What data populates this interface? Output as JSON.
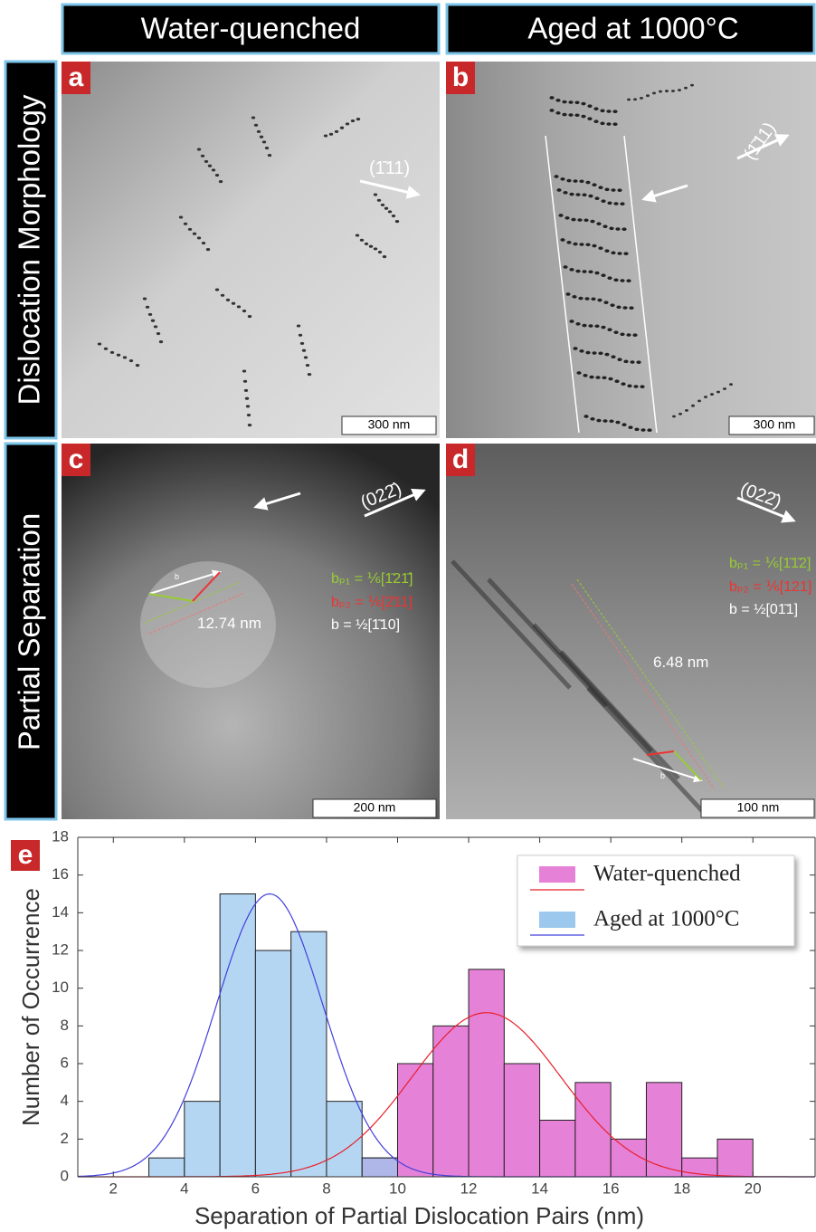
{
  "column_titles": [
    "Water-quenched",
    "Aged at 1000°C"
  ],
  "row_titles": [
    "Dislocation Morphology",
    "Partial Separation"
  ],
  "panels": [
    {
      "label": "a",
      "scale_bar": "300 nm",
      "direction": "(1̄11)"
    },
    {
      "label": "b",
      "scale_bar": "300 nm",
      "direction": "(1̄11)"
    },
    {
      "label": "c",
      "scale_bar": "200 nm",
      "direction": "(022̄)",
      "separation": "12.74 nm",
      "burgers": [
        "bₚ₁ = ⅙[1̄21̄]",
        "bₚ₂ = ⅙[2̄11]",
        "b  = ½[1̄10]"
      ],
      "vector_label": "b"
    },
    {
      "label": "d",
      "scale_bar": "100 nm",
      "direction": "(022̄)",
      "separation": "6.48 nm",
      "burgers": [
        "bₚ₁ = ⅙[1̄1̄2]",
        "bₚ₂ = ⅙[121]",
        "b  = ½[01̄1]"
      ],
      "vector_label": "b"
    }
  ],
  "chart_data": {
    "type": "histogram",
    "panel_label": "e",
    "x_label": "Separation of Partial Dislocation Pairs (nm)",
    "y_label": "Number of Occurrence",
    "xlim": [
      1,
      21.75
    ],
    "ylim": [
      0,
      18
    ],
    "xticks": [
      2,
      4,
      6,
      8,
      10,
      12,
      14,
      16,
      18,
      20
    ],
    "yticks": [
      0,
      2,
      4,
      6,
      8,
      10,
      12,
      14,
      16,
      18
    ],
    "legend": "upper right",
    "series": [
      {
        "name": "Water-quenched",
        "color": "#e681d8",
        "fit_color": "#e8202a",
        "bins": [
          9,
          10,
          11,
          12,
          13,
          14,
          15,
          16,
          17,
          18,
          19,
          20
        ],
        "counts": [
          1,
          6,
          8,
          11,
          6,
          3,
          5,
          2,
          5,
          1,
          2
        ],
        "fit": {
          "peak": 8.7,
          "mean": 12.5,
          "sd": 2.1
        }
      },
      {
        "name": "Aged at 1000°C",
        "color": "#9cc8ee",
        "fit_color": "#4040dd",
        "bins": [
          3,
          4,
          5,
          6,
          7,
          8,
          9,
          10
        ],
        "counts": [
          1,
          4,
          15,
          12,
          13,
          4,
          1
        ],
        "fit": {
          "peak": 15,
          "mean": 6.4,
          "sd": 1.5
        }
      }
    ]
  }
}
